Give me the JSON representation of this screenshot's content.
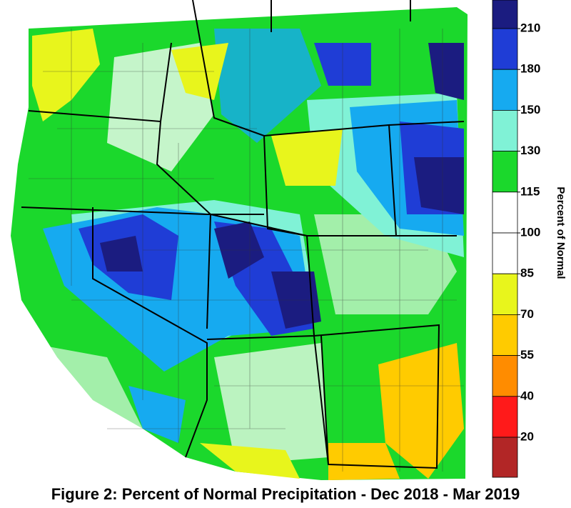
{
  "map": {
    "caption": "Figure 2: Percent of Normal Precipitation - Dec 2018 - Mar 2019",
    "legend": {
      "title": "Percent of Normal",
      "ticks": [
        210,
        180,
        150,
        130,
        115,
        100,
        85,
        70,
        55,
        40,
        20
      ],
      "colors": [
        "#1b1c80",
        "#1f3dd6",
        "#16aaf0",
        "#80f2d6",
        "#1bd82c",
        "#ffffff",
        "#ffffff",
        "#e8f51c",
        "#ffcb00",
        "#ff8c00",
        "#ff1a1a",
        "#b22626"
      ]
    }
  }
}
